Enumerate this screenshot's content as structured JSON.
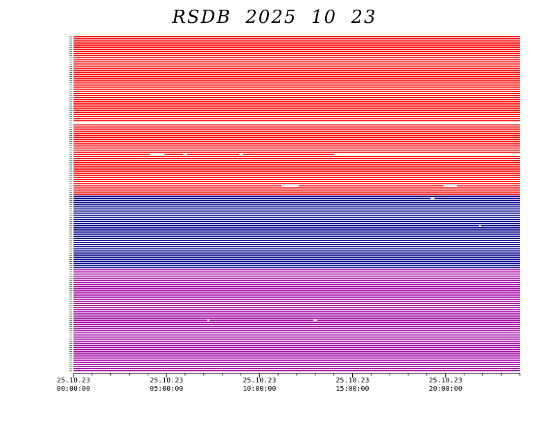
{
  "chart_data": {
    "type": "line",
    "title": "RSDB  2025  10  23",
    "xlabel": "",
    "ylabel": "",
    "x_ticks": [
      {
        "hour": 0,
        "date": "25.10.23",
        "time": "00:00:00"
      },
      {
        "hour": 5,
        "date": "25.10.23",
        "time": "05:00:00"
      },
      {
        "hour": 10,
        "date": "25.10.23",
        "time": "10:00:00"
      },
      {
        "hour": 15,
        "date": "25.10.23",
        "time": "15:00:00"
      },
      {
        "hour": 20,
        "date": "25.10.23",
        "time": "20:00:00"
      }
    ],
    "xlim": [
      0,
      24
    ],
    "grid": false,
    "series": [
      {
        "color": "#ff0000",
        "count": 76
      },
      {
        "color": "#00008b",
        "count": 35
      },
      {
        "color": "#a000a0",
        "count": 49
      }
    ],
    "gaps": [
      {
        "channel": 41,
        "start": 0.0,
        "end": 5.9
      },
      {
        "channel": 41,
        "start": 5.9,
        "end": 24.0
      },
      {
        "channel": 56,
        "start": 4.1,
        "end": 4.9
      },
      {
        "channel": 56,
        "start": 5.9,
        "end": 6.1
      },
      {
        "channel": 56,
        "start": 8.9,
        "end": 9.1
      },
      {
        "channel": 56,
        "start": 14.0,
        "end": 24.0
      },
      {
        "channel": 71,
        "start": 11.2,
        "end": 12.1
      },
      {
        "channel": 71,
        "start": 19.9,
        "end": 20.6
      },
      {
        "channel": 77,
        "start": 19.2,
        "end": 19.4
      },
      {
        "channel": 90,
        "start": 21.8,
        "end": 21.9
      },
      {
        "channel": 135,
        "start": 7.2,
        "end": 7.3
      },
      {
        "channel": 135,
        "start": 12.9,
        "end": 13.1
      }
    ]
  }
}
